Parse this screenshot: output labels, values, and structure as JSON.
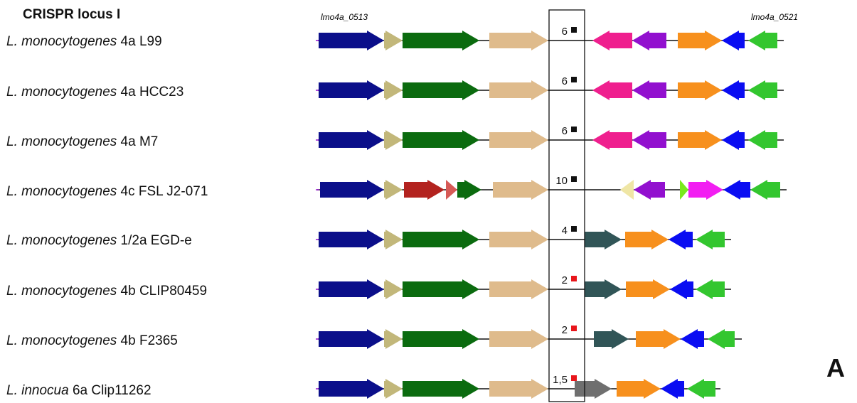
{
  "title": "CRISPR locus I",
  "panel_label": "A",
  "top_labels": {
    "left": "lmo4a_0513",
    "right": "lmo4a_0521"
  },
  "colors": {
    "navy": "#0b0f8a",
    "khaki": "#c2b77a",
    "darkgreen": "#0b6b0f",
    "tan": "#dfbb8c",
    "pink": "#ef1f8e",
    "purple": "#9210cf",
    "orange": "#f7901d",
    "blue": "#0a0df2",
    "lime": "#33c62f",
    "darkred": "#b3231f",
    "salmon": "#d65a56",
    "paleyellow": "#efe6a5",
    "chartreuse": "#78ea1d",
    "magenta": "#f21ef2",
    "slate": "#315557",
    "gray": "#6f6f6f",
    "black_marker": "#111111",
    "red_marker": "#e8161b"
  },
  "rows": [
    {
      "species": "L. monocytogenes",
      "strain": "4a L99",
      "count": "6",
      "marker": "black",
      "genes": [
        [
          "navy",
          1
        ],
        [
          "khaki",
          1
        ],
        [
          "darkgreen",
          1
        ],
        [
          "tan",
          1
        ],
        [
          "pink",
          -1
        ],
        [
          "purple",
          -1
        ],
        [
          "orange",
          1
        ],
        [
          "blue",
          -1
        ],
        [
          "lime",
          -1
        ]
      ]
    },
    {
      "species": "L. monocytogenes",
      "strain": "4a HCC23",
      "count": "6",
      "marker": "black",
      "genes": [
        [
          "navy",
          1
        ],
        [
          "khaki",
          1
        ],
        [
          "darkgreen",
          1
        ],
        [
          "tan",
          1
        ],
        [
          "pink",
          -1
        ],
        [
          "purple",
          -1
        ],
        [
          "orange",
          1
        ],
        [
          "blue",
          -1
        ],
        [
          "lime",
          -1
        ]
      ]
    },
    {
      "species": "L. monocytogenes",
      "strain": "4a M7",
      "count": "6",
      "marker": "black",
      "genes": [
        [
          "navy",
          1
        ],
        [
          "khaki",
          1
        ],
        [
          "darkgreen",
          1
        ],
        [
          "tan",
          1
        ],
        [
          "pink",
          -1
        ],
        [
          "purple",
          -1
        ],
        [
          "orange",
          1
        ],
        [
          "blue",
          -1
        ],
        [
          "lime",
          -1
        ]
      ]
    },
    {
      "species": "L. monocytogenes",
      "strain": "4c FSL J2-071",
      "count": "10",
      "marker": "black",
      "genes": [
        [
          "navy",
          1
        ],
        [
          "khaki",
          1
        ],
        [
          "darkred",
          1
        ],
        [
          "salmon",
          1
        ],
        [
          "darkgreen",
          1
        ],
        [
          "tan",
          1
        ],
        [
          "paleyellow",
          -1
        ],
        [
          "purple",
          -1
        ],
        [
          "chartreuse",
          1
        ],
        [
          "magenta",
          1
        ],
        [
          "blue",
          -1
        ],
        [
          "lime",
          -1
        ]
      ]
    },
    {
      "species": "L. monocytogenes",
      "strain": "1/2a EGD-e",
      "count": "4",
      "marker": "black",
      "genes": [
        [
          "navy",
          1
        ],
        [
          "khaki",
          1
        ],
        [
          "darkgreen",
          1
        ],
        [
          "tan",
          1
        ],
        [
          "slate",
          1
        ],
        [
          "orange",
          1
        ],
        [
          "blue",
          -1
        ],
        [
          "lime",
          -1
        ]
      ]
    },
    {
      "species": "L. monocytogenes",
      "strain": "4b CLIP80459",
      "count": "2",
      "marker": "red",
      "genes": [
        [
          "navy",
          1
        ],
        [
          "khaki",
          1
        ],
        [
          "darkgreen",
          1
        ],
        [
          "tan",
          1
        ],
        [
          "slate",
          1
        ],
        [
          "orange",
          1
        ],
        [
          "blue",
          -1
        ],
        [
          "lime",
          -1
        ]
      ]
    },
    {
      "species": "L. monocytogenes",
      "strain": "4b F2365",
      "count": "2",
      "marker": "red",
      "genes": [
        [
          "navy",
          1
        ],
        [
          "khaki",
          1
        ],
        [
          "darkgreen",
          1
        ],
        [
          "tan",
          1
        ],
        [
          "slate",
          1
        ],
        [
          "orange",
          1
        ],
        [
          "blue",
          -1
        ],
        [
          "lime",
          -1
        ]
      ]
    },
    {
      "species": "L. innocua",
      "strain": "6a Clip11262",
      "count": "1,5",
      "marker": "red",
      "genes": [
        [
          "navy",
          1
        ],
        [
          "khaki",
          1
        ],
        [
          "darkgreen",
          1
        ],
        [
          "tan",
          1
        ],
        [
          "gray",
          1
        ],
        [
          "orange",
          1
        ],
        [
          "blue",
          -1
        ],
        [
          "lime",
          -1
        ]
      ]
    }
  ]
}
